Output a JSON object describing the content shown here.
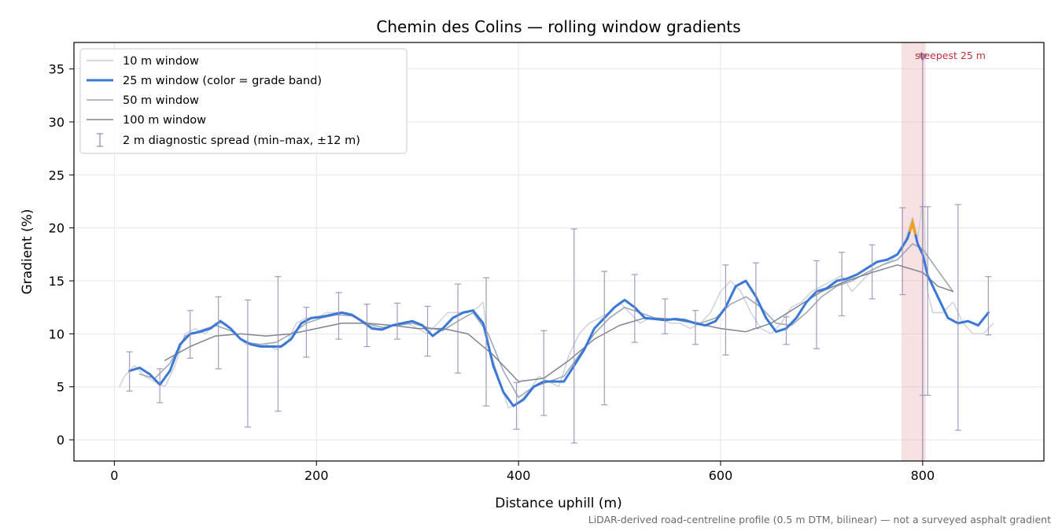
{
  "chart_data": {
    "type": "line",
    "title": "Chemin des Colins — rolling window gradients",
    "xlabel": "Distance uphill (m)",
    "ylabel": "Gradient (%)",
    "xlim": [
      -40,
      920
    ],
    "ylim": [
      -2,
      37.5
    ],
    "xticks": [
      0,
      200,
      400,
      600,
      800
    ],
    "yticks": [
      0,
      5,
      10,
      15,
      20,
      25,
      30,
      35
    ],
    "grid": true,
    "legend_position": "upper-left",
    "footnote": "LiDAR-derived road-centreline profile (0.5 m DTM, bilinear) — not a surveyed asphalt gradient",
    "colors": {
      "w10": "#c8ced6",
      "w25": "#3a78d8",
      "w25_peak": "#f0a020",
      "w50": "#99a4b2",
      "w100": "#7d8591",
      "diag": "#9990b8",
      "highlight": "#e8a8b0",
      "annotation": "#c0303a"
    },
    "series": [
      {
        "name": "10 m window",
        "key": "w10",
        "x": [
          5,
          10,
          20,
          30,
          40,
          50,
          60,
          70,
          80,
          90,
          100,
          110,
          120,
          130,
          140,
          150,
          160,
          170,
          180,
          190,
          200,
          210,
          220,
          230,
          240,
          250,
          260,
          270,
          280,
          290,
          300,
          310,
          320,
          330,
          340,
          350,
          360,
          365,
          370,
          380,
          390,
          400,
          410,
          420,
          430,
          440,
          450,
          460,
          470,
          480,
          490,
          500,
          510,
          520,
          530,
          540,
          550,
          560,
          570,
          580,
          590,
          600,
          610,
          620,
          630,
          640,
          650,
          660,
          670,
          680,
          690,
          700,
          710,
          720,
          730,
          740,
          750,
          760,
          770,
          780,
          790,
          795,
          800,
          805,
          810,
          820,
          830,
          840,
          850,
          860,
          870
        ],
        "y": [
          5,
          6,
          7,
          6,
          5.5,
          5,
          7,
          10,
          10.5,
          10,
          11,
          11,
          10,
          9,
          9,
          9,
          8.5,
          9,
          11,
          11.5,
          11.5,
          12,
          12,
          12,
          11.5,
          11,
          10.5,
          10.5,
          11,
          11,
          10.5,
          10,
          11,
          12,
          12,
          12,
          12.5,
          13,
          9,
          6,
          3,
          3.5,
          4.5,
          6,
          5.5,
          5,
          8,
          10,
          11,
          11.5,
          12,
          13,
          12,
          11,
          11.5,
          11.5,
          11,
          11,
          10.5,
          11,
          12,
          14,
          15,
          14,
          12,
          10.5,
          10,
          11,
          12.5,
          13,
          14,
          14.5,
          15,
          15.5,
          14,
          15,
          16,
          16.5,
          17,
          18,
          21,
          19,
          22.5,
          14,
          12,
          12,
          13,
          11,
          10,
          10,
          11
        ]
      },
      {
        "name": "25 m window (color = grade band)",
        "key": "w25",
        "x": [
          15,
          25,
          35,
          45,
          55,
          65,
          75,
          85,
          95,
          105,
          115,
          125,
          135,
          145,
          155,
          165,
          175,
          185,
          195,
          205,
          215,
          225,
          235,
          245,
          255,
          265,
          275,
          285,
          295,
          305,
          315,
          325,
          335,
          345,
          355,
          365,
          375,
          385,
          395,
          405,
          415,
          425,
          435,
          445,
          455,
          465,
          475,
          485,
          495,
          505,
          515,
          525,
          535,
          545,
          555,
          565,
          575,
          585,
          595,
          605,
          615,
          625,
          635,
          645,
          655,
          665,
          675,
          685,
          695,
          705,
          715,
          725,
          735,
          745,
          755,
          765,
          775,
          785,
          790,
          795,
          800,
          805,
          815,
          825,
          835,
          845,
          855,
          865
        ],
        "y": [
          6.5,
          6.8,
          6.2,
          5.2,
          6.5,
          9,
          10,
          10.2,
          10.5,
          11.2,
          10.5,
          9.5,
          9,
          8.8,
          8.8,
          8.8,
          9.5,
          11,
          11.5,
          11.6,
          11.8,
          12,
          11.8,
          11.2,
          10.5,
          10.4,
          10.8,
          11,
          11.2,
          10.8,
          9.8,
          10.5,
          11.5,
          12,
          12.2,
          11,
          7,
          4.5,
          3.2,
          3.8,
          5,
          5.5,
          5.5,
          5.5,
          7,
          8.5,
          10.5,
          11.5,
          12.5,
          13.2,
          12.5,
          11.5,
          11.4,
          11.3,
          11.4,
          11.3,
          11,
          10.8,
          11.2,
          12.5,
          14.5,
          15,
          13.5,
          11.5,
          10.2,
          10.5,
          11.5,
          13,
          14,
          14.3,
          15,
          15.2,
          15.6,
          16.2,
          16.8,
          17,
          17.5,
          19,
          20.5,
          18.5,
          17.5,
          15.5,
          13.5,
          11.5,
          11,
          11.2,
          10.8,
          12
        ]
      },
      {
        "name": "50 m window",
        "key": "w50",
        "x": [
          25,
          40,
          55,
          70,
          85,
          100,
          115,
          130,
          145,
          160,
          175,
          190,
          205,
          220,
          235,
          250,
          265,
          280,
          295,
          310,
          325,
          340,
          355,
          370,
          385,
          400,
          415,
          430,
          445,
          460,
          475,
          490,
          505,
          520,
          535,
          550,
          565,
          580,
          595,
          610,
          625,
          640,
          655,
          670,
          685,
          700,
          715,
          730,
          745,
          760,
          775,
          790,
          800,
          815,
          830
        ],
        "y": [
          6.2,
          5.8,
          7.2,
          9.8,
          10.3,
          10.8,
          10.3,
          9.2,
          9,
          9.2,
          10,
          11,
          11.5,
          11.8,
          11.7,
          11,
          10.6,
          10.8,
          11,
          10.6,
          10.3,
          11.2,
          12,
          10,
          6.5,
          4,
          5,
          5.5,
          6,
          8,
          10,
          11.5,
          12.5,
          12,
          11.5,
          11.4,
          11.2,
          11,
          11.5,
          12.8,
          13.5,
          12.5,
          11,
          10.8,
          12,
          13.5,
          14.5,
          15,
          15.8,
          16.5,
          17,
          18.5,
          18,
          16,
          14
        ]
      },
      {
        "name": "100 m window",
        "key": "w100",
        "x": [
          50,
          75,
          100,
          125,
          150,
          175,
          200,
          225,
          250,
          275,
          300,
          325,
          350,
          375,
          400,
          425,
          450,
          475,
          500,
          525,
          550,
          575,
          600,
          625,
          650,
          675,
          700,
          725,
          750,
          775,
          800,
          815,
          830
        ],
        "y": [
          7.5,
          8.8,
          9.8,
          10,
          9.8,
          10,
          10.5,
          11,
          11,
          10.8,
          10.5,
          10.5,
          10,
          8,
          5.5,
          5.8,
          7.5,
          9.5,
          10.8,
          11.5,
          11.4,
          11,
          10.5,
          10.2,
          11,
          12.5,
          14,
          15,
          15.8,
          16.5,
          15.8,
          14.5,
          14
        ]
      }
    ],
    "diagnostic_spread": {
      "name": "2 m diagnostic spread (min–max, ±12 m)",
      "key": "diag",
      "x": [
        15,
        45,
        75,
        103,
        132,
        162,
        190,
        222,
        250,
        280,
        310,
        340,
        368,
        398,
        425,
        455,
        485,
        515,
        545,
        575,
        605,
        635,
        665,
        695,
        720,
        750,
        780,
        800,
        805,
        835,
        865
      ],
      "low": [
        4.6,
        3.5,
        7.7,
        6.7,
        1.2,
        2.7,
        7.8,
        9.5,
        8.8,
        9.5,
        7.9,
        6.3,
        3.2,
        1,
        2.3,
        -0.3,
        3.3,
        9.2,
        10,
        9,
        8,
        10.5,
        9,
        8.6,
        11.7,
        13.3,
        13.7,
        4.2,
        4.2,
        0.9,
        9.9
      ],
      "high": [
        8.3,
        6.7,
        12.2,
        13.5,
        13.2,
        15.4,
        12.5,
        13.9,
        12.8,
        12.9,
        12.6,
        14.7,
        15.3,
        5.4,
        10.3,
        19.9,
        15.9,
        15.6,
        13.3,
        12.2,
        16.5,
        16.7,
        11.6,
        16.9,
        17.7,
        18.4,
        21.9,
        22,
        22,
        22.2,
        15.4
      ]
    },
    "highlight_band": {
      "x0": 779,
      "x1": 803
    },
    "peak_marker": {
      "x": 800,
      "y": 36,
      "label": "steepest 25 m"
    }
  }
}
